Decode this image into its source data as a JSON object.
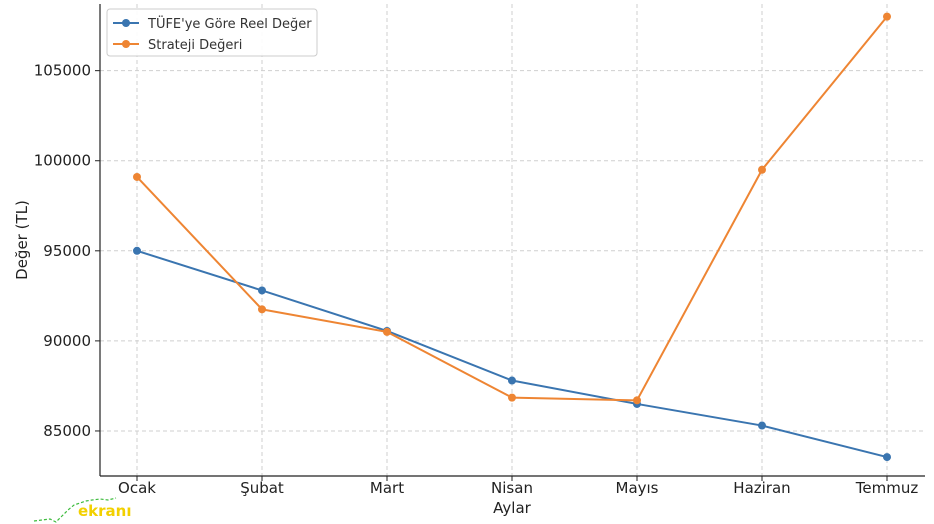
{
  "chart_data": {
    "type": "line",
    "title": "",
    "xlabel": "Aylar",
    "ylabel": "Değer (TL)",
    "categories": [
      "Ocak",
      "Şubat",
      "Mart",
      "Nisan",
      "Mayıs",
      "Haziran",
      "Temmuz"
    ],
    "ylim": [
      82500,
      108700
    ],
    "yticks": [
      85000,
      90000,
      95000,
      100000,
      105000
    ],
    "grid": true,
    "legend_position": "top-left",
    "series": [
      {
        "name": "TÜFE'ye Göre Reel Değer",
        "color": "#3a75b0",
        "values": [
          95000,
          92800,
          90550,
          87800,
          86500,
          85300,
          83550
        ]
      },
      {
        "name": "Strateji Değeri",
        "color": "#ee8533",
        "values": [
          99100,
          91750,
          90500,
          86850,
          86700,
          99500,
          108000
        ]
      }
    ]
  },
  "watermark": {
    "text": "ekranı"
  }
}
